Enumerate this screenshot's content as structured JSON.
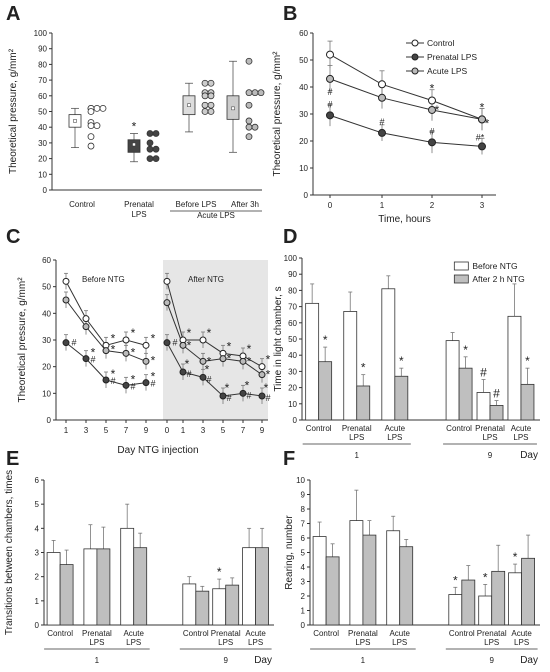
{
  "panel_letters": [
    "A",
    "B",
    "C",
    "D",
    "E",
    "F"
  ],
  "chart_data": [
    {
      "id": "A",
      "type": "box",
      "ylabel": "Theoretical pressure, g/mm²",
      "ylim": [
        0,
        100
      ],
      "yticks": [
        0,
        10,
        20,
        30,
        40,
        50,
        60,
        70,
        80,
        90,
        100
      ],
      "categories": [
        "Control",
        "Prenatal LPS",
        "Before LPS",
        "After 3h"
      ],
      "group_label": "Acute LPS",
      "boxes": [
        {
          "q1": 40,
          "q3": 48,
          "median": 44,
          "mean": 44,
          "lo": 27,
          "hi": 52,
          "fill": "#ffffff",
          "points": [
            52,
            52,
            52,
            52,
            50,
            43,
            41,
            41,
            34,
            28
          ],
          "point_fill": "#ffffff",
          "mark": ""
        },
        {
          "q1": 24,
          "q3": 32,
          "median": 29,
          "mean": 29,
          "lo": 18,
          "hi": 36,
          "fill": "#444444",
          "points": [
            36,
            36,
            30,
            26,
            26,
            20,
            20
          ],
          "point_fill": "#444444",
          "mark": "*"
        },
        {
          "q1": 48,
          "q3": 60,
          "median": 54,
          "mean": 54,
          "lo": 37,
          "hi": 68,
          "fill": "#dddddd",
          "points": [
            68,
            68,
            62,
            62,
            60,
            60,
            54,
            54,
            50,
            50
          ],
          "point_fill": "#cccccc",
          "mark": ""
        },
        {
          "q1": 45,
          "q3": 60,
          "median": 52,
          "mean": 52,
          "lo": 24,
          "hi": 82,
          "fill": "#cccccc",
          "points": [
            82,
            62,
            62,
            62,
            54,
            44,
            40,
            40,
            34
          ],
          "point_fill": "#bbbbbb",
          "mark": ""
        }
      ]
    },
    {
      "id": "B",
      "type": "line",
      "xlabel": "Time, hours",
      "ylabel": "Theoretical pressure, g/mm²",
      "x": [
        0,
        1,
        2,
        3
      ],
      "ylim": [
        0,
        60
      ],
      "yticks": [
        0,
        10,
        20,
        30,
        40,
        50,
        60
      ],
      "series": [
        {
          "name": "Control",
          "values": [
            52,
            41,
            35,
            28
          ],
          "err": [
            5,
            5,
            4,
            4
          ],
          "fill": "#ffffff",
          "marks": [
            "",
            "",
            "*",
            "*"
          ]
        },
        {
          "name": "Prenatal LPS",
          "values": [
            29.5,
            23,
            19.5,
            18
          ],
          "err": [
            4,
            3,
            4,
            3
          ],
          "fill": "#444444",
          "marks": [
            "#",
            "#",
            "#",
            "#*"
          ]
        },
        {
          "name": "Acute LPS",
          "values": [
            43,
            36,
            31.5,
            28
          ],
          "err": [
            5,
            4,
            4,
            4
          ],
          "fill": "#bbbbbb",
          "marks": [
            "#",
            "",
            "*",
            "*"
          ]
        }
      ]
    },
    {
      "id": "C",
      "type": "line",
      "xlabel": "Day NTG injection",
      "ylabel": "Theoretical pressure, g/mm²",
      "ylim": [
        0,
        60
      ],
      "yticks": [
        0,
        10,
        20,
        30,
        40,
        50,
        60
      ],
      "segment_labels": [
        "Before NTG",
        "After NTG"
      ],
      "before_x": [
        "1",
        "3",
        "5",
        "7",
        "9"
      ],
      "after_x": [
        "0",
        "1",
        "3",
        "5",
        "7",
        "9"
      ],
      "series": [
        {
          "name": "Control",
          "fill": "#ffffff",
          "before": [
            52,
            38,
            28,
            30,
            28
          ],
          "after": [
            52,
            30,
            30,
            25,
            24,
            20
          ]
        },
        {
          "name": "Acute LPS",
          "fill": "#bbbbbb",
          "before": [
            45,
            35,
            26,
            25,
            22
          ],
          "after": [
            44,
            28,
            22,
            23,
            22,
            17
          ]
        },
        {
          "name": "Prenatal LPS",
          "fill": "#444444",
          "before": [
            29,
            23,
            15,
            13,
            14
          ],
          "after": [
            29,
            18,
            16,
            9,
            10,
            9
          ]
        }
      ]
    },
    {
      "id": "D",
      "type": "bar",
      "ylabel": "Time in light chamber, s",
      "ylim": [
        0,
        100
      ],
      "yticks": [
        0,
        10,
        20,
        30,
        40,
        50,
        60,
        70,
        80,
        90,
        100
      ],
      "legend": [
        "Before NTG",
        "After 2 h NTG"
      ],
      "groups": [
        "Control",
        "Prenatal LPS",
        "Acute LPS",
        "Control",
        "Prenatal LPS",
        "Acute LPS"
      ],
      "day_labels": [
        "1",
        "9"
      ],
      "day_word": "Day",
      "before": [
        72,
        67,
        81,
        49,
        17,
        64
      ],
      "after": [
        36,
        21,
        27,
        32,
        9,
        22
      ],
      "before_err": [
        12,
        12,
        8,
        5,
        8,
        20
      ],
      "after_err": [
        9,
        7,
        5,
        7,
        3,
        10
      ],
      "marks_before": [
        "",
        "",
        "",
        "",
        "#",
        ""
      ],
      "marks_after": [
        "*",
        "*",
        "*",
        "*",
        "#",
        "*"
      ]
    },
    {
      "id": "E",
      "type": "bar",
      "ylabel": "Transitions between chambers, times",
      "ylim": [
        0,
        6
      ],
      "yticks": [
        0,
        1,
        2,
        3,
        4,
        5,
        6
      ],
      "groups": [
        "Control",
        "Prenatal LPS",
        "Acute LPS",
        "Control",
        "Prenatal LPS",
        "Acute LPS"
      ],
      "day_labels": [
        "1",
        "9"
      ],
      "day_word": "Day",
      "before": [
        3.0,
        3.15,
        4.0,
        1.7,
        1.5,
        3.2
      ],
      "after": [
        2.5,
        3.15,
        3.2,
        1.4,
        1.65,
        3.2
      ],
      "before_err": [
        0.5,
        1.0,
        1.0,
        0.3,
        0.4,
        0.8
      ],
      "after_err": [
        0.6,
        0.9,
        0.6,
        0.2,
        0.3,
        0.8
      ],
      "marks_before": [
        "",
        "",
        "",
        "",
        "*",
        ""
      ],
      "marks_after": [
        "",
        "",
        "",
        "",
        "",
        ""
      ]
    },
    {
      "id": "F",
      "type": "bar",
      "ylabel": "Rearing, number",
      "ylim": [
        0,
        10
      ],
      "yticks": [
        0,
        1,
        2,
        3,
        4,
        5,
        6,
        7,
        8,
        9,
        10
      ],
      "groups": [
        "Control",
        "Prenatal LPS",
        "Acute LPS",
        "Control",
        "Prenatal LPS",
        "Acute LPS"
      ],
      "day_labels": [
        "1",
        "9"
      ],
      "day_word": "Day",
      "before": [
        6.1,
        7.2,
        6.5,
        2.1,
        2.0,
        3.6
      ],
      "after": [
        4.7,
        6.2,
        5.4,
        3.1,
        3.7,
        4.6
      ],
      "before_err": [
        1.0,
        2.1,
        1.0,
        0.5,
        0.8,
        0.6
      ],
      "after_err": [
        0.9,
        1.0,
        0.5,
        1.0,
        1.8,
        1.6
      ],
      "marks_before": [
        "",
        "",
        "",
        "*",
        "*",
        "*"
      ],
      "marks_after": [
        "",
        "",
        "",
        "",
        "",
        ""
      ]
    }
  ]
}
